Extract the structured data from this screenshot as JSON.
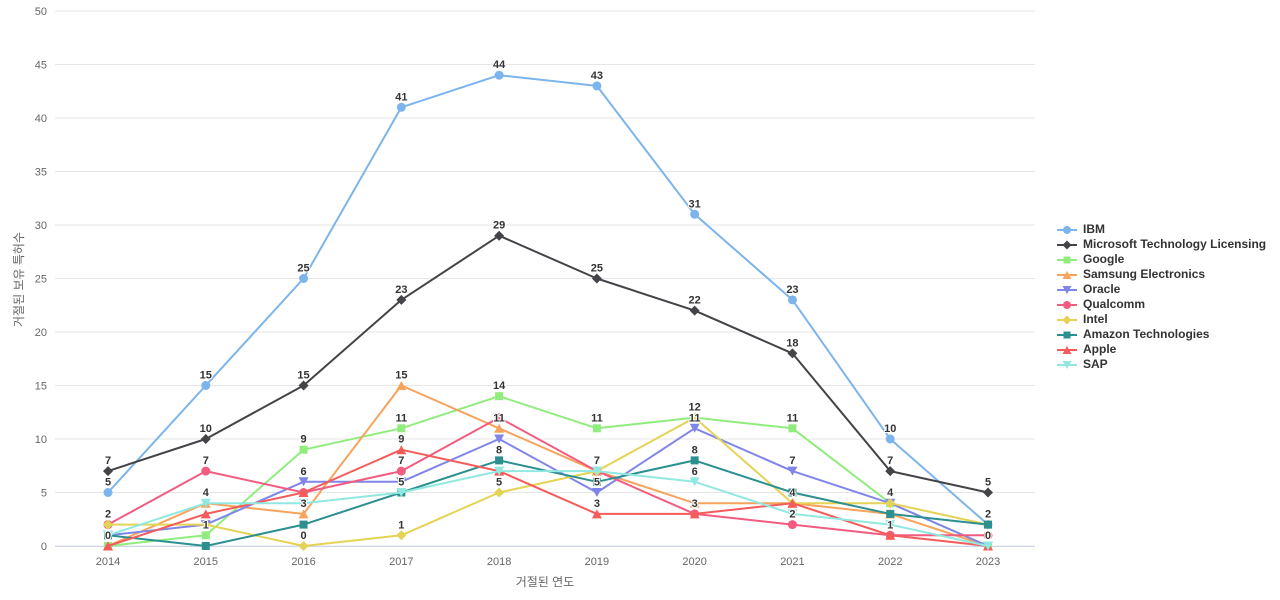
{
  "chart_data": {
    "type": "line",
    "title": "",
    "xlabel": "거절된 연도",
    "ylabel": "거절된 보유 특허수",
    "x": [
      2014,
      2015,
      2016,
      2017,
      2018,
      2019,
      2020,
      2021,
      2022,
      2023
    ],
    "ylim": [
      0,
      50
    ],
    "yticks": [
      0,
      5,
      10,
      15,
      20,
      25,
      30,
      35,
      40,
      45,
      50
    ],
    "grid": "horizontal-only",
    "legend_position": "right",
    "background": "#ffffff",
    "gridline_color": "#e6e6e6",
    "xaxis_line_color": "#ccd6eb",
    "tick_label_color": "#666666",
    "point_label_color": "#333333",
    "series": [
      {
        "name": "IBM",
        "color": "#7cb5ec",
        "marker": "circle",
        "values": [
          5,
          15,
          25,
          41,
          44,
          43,
          31,
          23,
          10,
          2
        ],
        "labels_shown": [
          true,
          true,
          true,
          true,
          true,
          true,
          true,
          true,
          true,
          false
        ]
      },
      {
        "name": "Microsoft Technology Licensing",
        "color": "#434348",
        "marker": "diamond",
        "values": [
          7,
          10,
          15,
          23,
          29,
          25,
          22,
          18,
          7,
          5
        ],
        "labels_shown": [
          true,
          true,
          true,
          true,
          true,
          true,
          true,
          true,
          true,
          true
        ]
      },
      {
        "name": "Google",
        "color": "#90ed7d",
        "marker": "square",
        "values": [
          0,
          1,
          9,
          11,
          14,
          11,
          12,
          11,
          4,
          0
        ],
        "labels_shown": [
          true,
          true,
          true,
          true,
          true,
          true,
          true,
          true,
          false,
          false
        ]
      },
      {
        "name": "Samsung Electronics",
        "color": "#f7a35c",
        "marker": "triangle",
        "values": [
          0,
          4,
          3,
          15,
          11,
          7,
          4,
          4,
          3,
          0
        ],
        "labels_shown": [
          false,
          false,
          true,
          true,
          true,
          false,
          false,
          false,
          false,
          false
        ]
      },
      {
        "name": "Oracle",
        "color": "#8085e9",
        "marker": "triangle-down",
        "values": [
          1,
          2,
          6,
          6,
          10,
          5,
          11,
          7,
          4,
          0
        ],
        "labels_shown": [
          false,
          false,
          true,
          false,
          false,
          true,
          true,
          true,
          true,
          false
        ]
      },
      {
        "name": "Qualcomm",
        "color": "#f15c80",
        "marker": "circle",
        "values": [
          2,
          7,
          5,
          7,
          12,
          7,
          3,
          2,
          1,
          1
        ],
        "labels_shown": [
          false,
          true,
          false,
          true,
          false,
          false,
          true,
          true,
          false,
          false
        ]
      },
      {
        "name": "Intel",
        "color": "#e4d354",
        "marker": "diamond",
        "values": [
          2,
          2,
          0,
          1,
          5,
          7,
          12,
          4,
          4,
          2
        ],
        "labels_shown": [
          true,
          false,
          true,
          true,
          true,
          false,
          true,
          false,
          false,
          false
        ]
      },
      {
        "name": "Amazon Technologies",
        "color": "#2b908f",
        "marker": "square",
        "values": [
          1,
          0,
          2,
          5,
          8,
          6,
          8,
          5,
          3,
          2
        ],
        "labels_shown": [
          false,
          false,
          false,
          true,
          true,
          false,
          true,
          false,
          false,
          true
        ]
      },
      {
        "name": "Apple",
        "color": "#f45b5b",
        "marker": "triangle",
        "values": [
          0,
          3,
          5,
          9,
          7,
          3,
          3,
          4,
          1,
          0
        ],
        "labels_shown": [
          false,
          false,
          false,
          true,
          false,
          true,
          false,
          true,
          true,
          true
        ]
      },
      {
        "name": "SAP",
        "color": "#91e8e1",
        "marker": "triangle-down",
        "values": [
          1,
          4,
          4,
          5,
          7,
          7,
          6,
          3,
          2,
          0
        ],
        "labels_shown": [
          false,
          true,
          false,
          false,
          false,
          true,
          true,
          false,
          false,
          false
        ]
      }
    ]
  }
}
